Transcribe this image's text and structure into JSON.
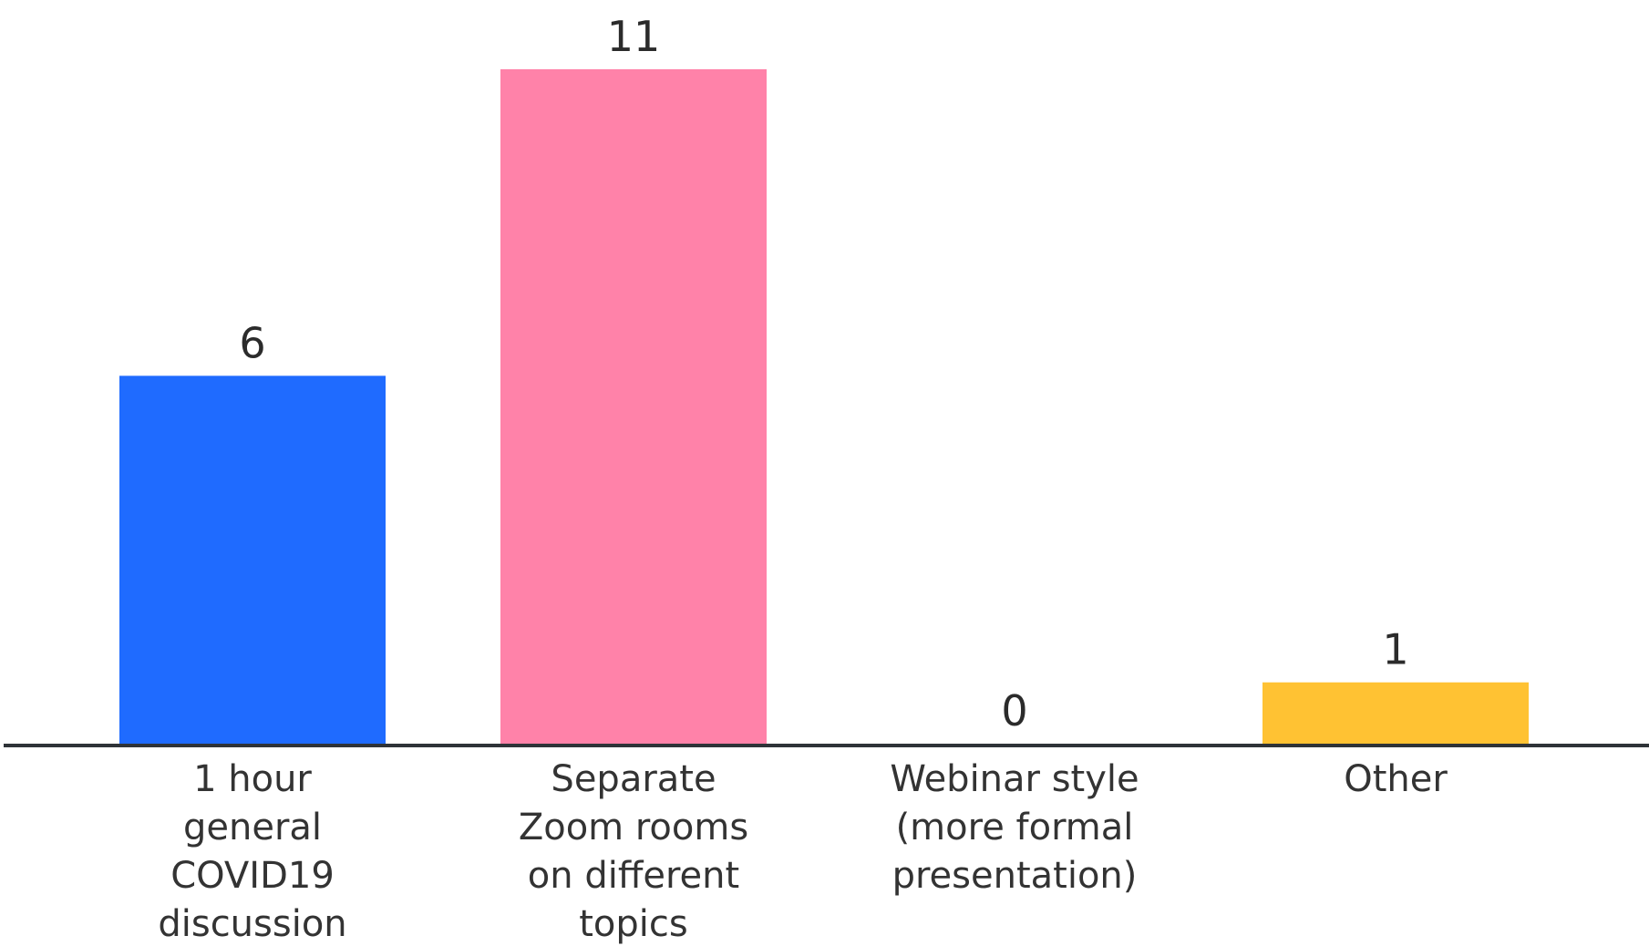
{
  "chart_data": {
    "type": "bar",
    "categories": [
      [
        "1 hour",
        "general",
        "COVID19",
        "discussion"
      ],
      [
        "Separate",
        "Zoom rooms",
        "on different",
        "topics"
      ],
      [
        "Webinar style",
        "(more formal",
        "presentation)"
      ],
      [
        "Other"
      ]
    ],
    "values": [
      6,
      11,
      0,
      1
    ],
    "value_labels": [
      "6",
      "11",
      "0",
      "1"
    ],
    "colors": [
      "#1F6BFF",
      "#FF82A9",
      "#FF82A9",
      "#FFC233"
    ],
    "axis_color": "#2F3338",
    "ylim": [
      0,
      11
    ],
    "grid": false,
    "title": "",
    "xlabel": "",
    "ylabel": ""
  }
}
